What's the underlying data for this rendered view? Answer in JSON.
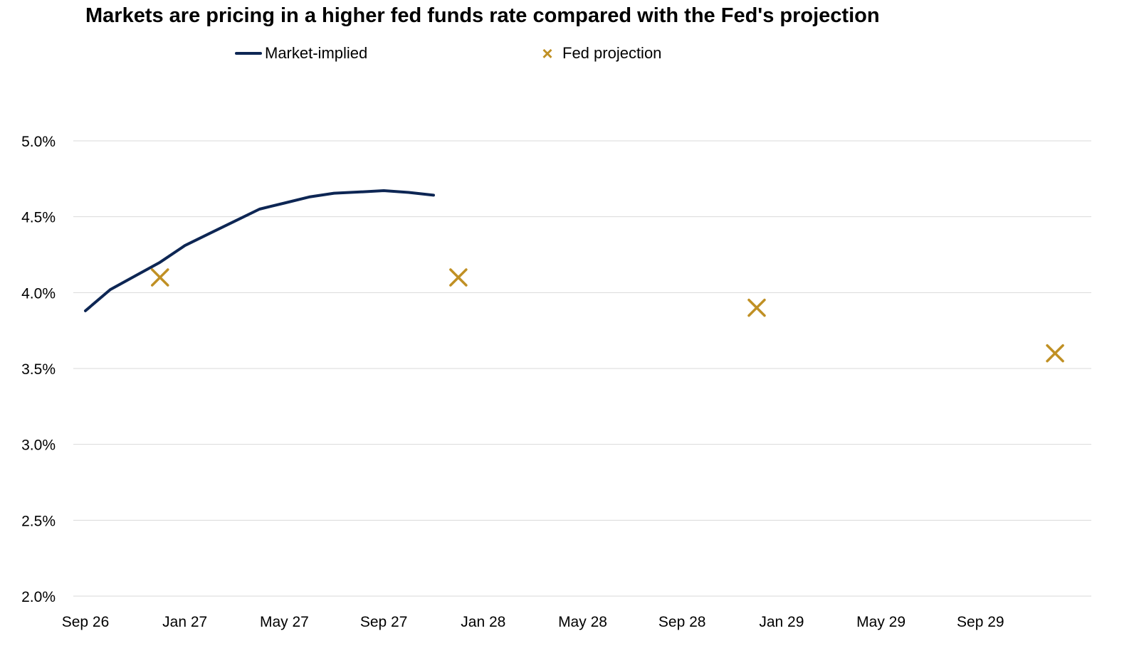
{
  "chart_data": {
    "type": "line",
    "title": "Markets are pricing in a higher fed funds rate compared with the Fed's projection",
    "xlabel": "",
    "ylabel": "",
    "legend_position": "top",
    "grid": "horizontal",
    "x_ticks": [
      "Sep 26",
      "Jan 27",
      "May 27",
      "Sep 27",
      "Jan 28",
      "May 28",
      "Sep 28",
      "Jan 29",
      "May 29",
      "Sep 29"
    ],
    "y_ticks": [
      "2.0%",
      "2.5%",
      "3.0%",
      "3.5%",
      "4.0%",
      "4.5%",
      "5.0%"
    ],
    "ylim": [
      2.0,
      5.0
    ],
    "xlim_months": [
      0,
      40
    ],
    "series": [
      {
        "name": "Market-implied",
        "kind": "line",
        "color": "#0d2654",
        "points": [
          {
            "month": 0,
            "y": 3.88
          },
          {
            "month": 1,
            "y": 4.02
          },
          {
            "month": 2,
            "y": 4.11
          },
          {
            "month": 3,
            "y": 4.2
          },
          {
            "month": 4,
            "y": 4.31
          },
          {
            "month": 5,
            "y": 4.39
          },
          {
            "month": 6,
            "y": 4.47
          },
          {
            "month": 7,
            "y": 4.55
          },
          {
            "month": 8,
            "y": 4.59
          },
          {
            "month": 9,
            "y": 4.63
          },
          {
            "month": 10,
            "y": 4.655
          },
          {
            "month": 11,
            "y": 4.663
          },
          {
            "month": 12,
            "y": 4.672
          },
          {
            "month": 13,
            "y": 4.66
          },
          {
            "month": 14,
            "y": 4.642
          }
        ]
      },
      {
        "name": "Fed projection",
        "kind": "marker",
        "color": "#c09024",
        "points": [
          {
            "month": 3,
            "y": 4.1
          },
          {
            "month": 15,
            "y": 4.1
          },
          {
            "month": 27,
            "y": 3.9
          },
          {
            "month": 39,
            "y": 3.6
          }
        ]
      }
    ]
  }
}
